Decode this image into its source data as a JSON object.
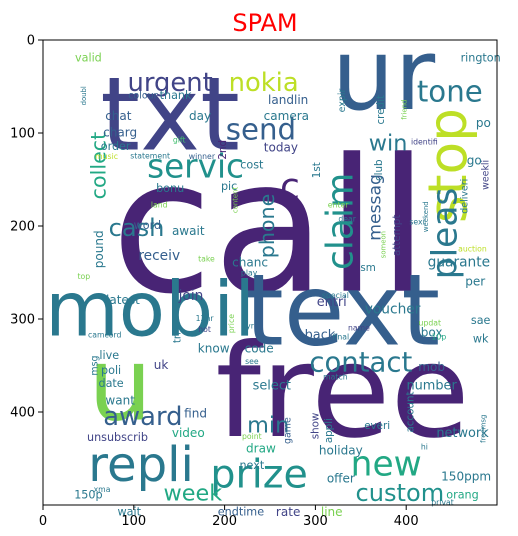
{
  "chart_data": {
    "type": "wordcloud",
    "title": "SPAM",
    "title_color": "#ff0000",
    "background": "#ffffff",
    "xlim": [
      0,
      500
    ],
    "ylim": [
      500,
      0
    ],
    "x_ticks": [
      0,
      100,
      200,
      300,
      400
    ],
    "y_ticks": [
      0,
      100,
      200,
      300,
      400
    ],
    "palette": [
      "#440154",
      "#482475",
      "#414487",
      "#355f8d",
      "#2a788e",
      "#21918c",
      "#22a884",
      "#44bf70",
      "#7ad151",
      "#bddf26",
      "#fde725"
    ],
    "words": [
      {
        "text": "call",
        "x": 250,
        "y": 215,
        "size": 215,
        "color": "#482475"
      },
      {
        "text": "free",
        "x": 330,
        "y": 388,
        "size": 150,
        "color": "#482475"
      },
      {
        "text": "txt",
        "x": 140,
        "y": 88,
        "size": 118,
        "color": "#414487"
      },
      {
        "text": "ur",
        "x": 375,
        "y": 45,
        "size": 115,
        "color": "#355f8d"
      },
      {
        "text": "text",
        "x": 330,
        "y": 298,
        "size": 115,
        "color": "#355f8d"
      },
      {
        "text": "mobil",
        "x": 118,
        "y": 295,
        "size": 88,
        "color": "#2a788e"
      },
      {
        "text": "u",
        "x": 85,
        "y": 378,
        "size": 118,
        "color": "#7ad151"
      },
      {
        "text": "stop",
        "x": 450,
        "y": 135,
        "size": 62,
        "color": "#bddf26",
        "rotate": -90
      },
      {
        "text": "repli",
        "x": 108,
        "y": 460,
        "size": 56,
        "color": "#2a788e"
      },
      {
        "text": "prize",
        "x": 238,
        "y": 470,
        "size": 46,
        "color": "#21918c"
      },
      {
        "text": "claim",
        "x": 330,
        "y": 195,
        "size": 42,
        "color": "#21918c",
        "rotate": -90
      },
      {
        "text": "pleas",
        "x": 445,
        "y": 208,
        "size": 40,
        "color": "#2a788e",
        "rotate": -90
      },
      {
        "text": "new",
        "x": 378,
        "y": 458,
        "size": 40,
        "color": "#22a884"
      },
      {
        "text": "servic",
        "x": 168,
        "y": 138,
        "size": 38,
        "color": "#21918c"
      },
      {
        "text": "send",
        "x": 240,
        "y": 98,
        "size": 34,
        "color": "#355f8d"
      },
      {
        "text": "tone",
        "x": 448,
        "y": 57,
        "size": 34,
        "color": "#2a788e"
      },
      {
        "text": "contact",
        "x": 350,
        "y": 348,
        "size": 32,
        "color": "#2a788e"
      },
      {
        "text": "c",
        "x": 272,
        "y": 160,
        "size": 42,
        "color": "#482475"
      },
      {
        "text": "award",
        "x": 110,
        "y": 406,
        "size": 30,
        "color": "#355f8d"
      },
      {
        "text": "urgent",
        "x": 140,
        "y": 47,
        "size": 30,
        "color": "#414487"
      },
      {
        "text": "nokia",
        "x": 243,
        "y": 47,
        "size": 30,
        "color": "#bddf26"
      },
      {
        "text": "custom",
        "x": 393,
        "y": 488,
        "size": 28,
        "color": "#21918c"
      },
      {
        "text": "cash",
        "x": 103,
        "y": 203,
        "size": 28,
        "color": "#2a788e"
      },
      {
        "text": "week",
        "x": 165,
        "y": 488,
        "size": 26,
        "color": "#22a884"
      },
      {
        "text": "min",
        "x": 248,
        "y": 415,
        "size": 26,
        "color": "#2a788e"
      },
      {
        "text": "win",
        "x": 380,
        "y": 112,
        "size": 26,
        "color": "#2a788e"
      },
      {
        "text": "collect",
        "x": 62,
        "y": 135,
        "size": 24,
        "color": "#22a884",
        "rotate": -90
      },
      {
        "text": "phone",
        "x": 248,
        "y": 200,
        "size": 24,
        "color": "#2a788e",
        "rotate": -90
      },
      {
        "text": "messag",
        "x": 366,
        "y": 180,
        "size": 20,
        "color": "#355f8d",
        "rotate": -90
      },
      {
        "text": "guarante",
        "x": 458,
        "y": 239,
        "size": 16,
        "color": "#2a788e"
      },
      {
        "text": "receiv",
        "x": 128,
        "y": 232,
        "size": 16,
        "color": "#355f8d"
      },
      {
        "text": "pound",
        "x": 62,
        "y": 225,
        "size": 14,
        "color": "#2a788e",
        "rotate": -90
      },
      {
        "text": "voucher",
        "x": 385,
        "y": 290,
        "size": 16,
        "color": "#2a788e"
      },
      {
        "text": "join",
        "x": 163,
        "y": 275,
        "size": 16,
        "color": "#414487"
      },
      {
        "text": "back",
        "x": 305,
        "y": 318,
        "size": 15,
        "color": "#355f8d"
      },
      {
        "text": "entri",
        "x": 318,
        "y": 282,
        "size": 15,
        "color": "#414487"
      },
      {
        "text": "select",
        "x": 252,
        "y": 372,
        "size": 15,
        "color": "#2a788e"
      },
      {
        "text": "number",
        "x": 428,
        "y": 372,
        "size": 15,
        "color": "#2a788e"
      },
      {
        "text": "network",
        "x": 462,
        "y": 423,
        "size": 15,
        "color": "#2a788e"
      },
      {
        "text": "holiday",
        "x": 328,
        "y": 442,
        "size": 14,
        "color": "#2a788e"
      },
      {
        "text": "offer",
        "x": 328,
        "y": 472,
        "size": 14,
        "color": "#2a788e"
      },
      {
        "text": "150ppm",
        "x": 466,
        "y": 470,
        "size": 14,
        "color": "#2a788e"
      },
      {
        "text": "orang",
        "x": 462,
        "y": 490,
        "size": 13,
        "color": "#22a884"
      },
      {
        "text": "endtime",
        "x": 218,
        "y": 508,
        "size": 13,
        "color": "#355f8d"
      },
      {
        "text": "rate",
        "x": 270,
        "y": 508,
        "size": 14,
        "color": "#414487"
      },
      {
        "text": "line",
        "x": 318,
        "y": 508,
        "size": 14,
        "color": "#7ad151"
      },
      {
        "text": "wait",
        "x": 95,
        "y": 508,
        "size": 13,
        "color": "#2a788e"
      },
      {
        "text": "150p",
        "x": 50,
        "y": 490,
        "size": 13,
        "color": "#2a788e"
      },
      {
        "text": "unsubscrib",
        "x": 82,
        "y": 428,
        "size": 13,
        "color": "#414487"
      },
      {
        "text": "video",
        "x": 160,
        "y": 423,
        "size": 14,
        "color": "#22a884"
      },
      {
        "text": "find",
        "x": 168,
        "y": 402,
        "size": 14,
        "color": "#355f8d"
      },
      {
        "text": "draw",
        "x": 240,
        "y": 440,
        "size": 14,
        "color": "#22a884"
      },
      {
        "text": "next",
        "x": 230,
        "y": 458,
        "size": 13,
        "color": "#2a788e"
      },
      {
        "text": "want",
        "x": 85,
        "y": 388,
        "size": 14,
        "color": "#2a788e"
      },
      {
        "text": "date",
        "x": 75,
        "y": 370,
        "size": 13,
        "color": "#2a788e"
      },
      {
        "text": "poli",
        "x": 75,
        "y": 356,
        "size": 13,
        "color": "#2a788e"
      },
      {
        "text": "live",
        "x": 73,
        "y": 340,
        "size": 13,
        "color": "#2a788e"
      },
      {
        "text": "uk",
        "x": 130,
        "y": 350,
        "size": 14,
        "color": "#414487"
      },
      {
        "text": "latest",
        "x": 88,
        "y": 280,
        "size": 14,
        "color": "#2a788e"
      },
      {
        "text": "know",
        "x": 188,
        "y": 332,
        "size": 14,
        "color": "#2a788e"
      },
      {
        "text": "code",
        "x": 238,
        "y": 332,
        "size": 14,
        "color": "#2a788e"
      },
      {
        "text": "mob",
        "x": 428,
        "y": 352,
        "size": 14,
        "color": "#355f8d"
      },
      {
        "text": "box",
        "x": 428,
        "y": 315,
        "size": 14,
        "color": "#2a788e"
      },
      {
        "text": "per",
        "x": 476,
        "y": 260,
        "size": 14,
        "color": "#2a788e"
      },
      {
        "text": "sae",
        "x": 482,
        "y": 302,
        "size": 13,
        "color": "#2a788e"
      },
      {
        "text": "wk",
        "x": 482,
        "y": 322,
        "size": 13,
        "color": "#2a788e"
      },
      {
        "text": "chanc",
        "x": 228,
        "y": 240,
        "size": 14,
        "color": "#2a788e"
      },
      {
        "text": "await",
        "x": 160,
        "y": 206,
        "size": 14,
        "color": "#2a788e"
      },
      {
        "text": "word",
        "x": 115,
        "y": 200,
        "size": 13,
        "color": "#355f8d"
      },
      {
        "text": "bonu",
        "x": 140,
        "y": 160,
        "size": 13,
        "color": "#2a788e"
      },
      {
        "text": "pic",
        "x": 205,
        "y": 158,
        "size": 13,
        "color": "#2a788e"
      },
      {
        "text": "cost",
        "x": 230,
        "y": 135,
        "size": 13,
        "color": "#2a788e"
      },
      {
        "text": "today",
        "x": 262,
        "y": 116,
        "size": 14,
        "color": "#414487"
      },
      {
        "text": "day",
        "x": 173,
        "y": 82,
        "size": 14,
        "color": "#2a788e"
      },
      {
        "text": "chat",
        "x": 83,
        "y": 82,
        "size": 14,
        "color": "#355f8d"
      },
      {
        "text": "charg",
        "x": 85,
        "y": 100,
        "size": 14,
        "color": "#355f8d"
      },
      {
        "text": "order",
        "x": 80,
        "y": 115,
        "size": 13,
        "color": "#2a788e"
      },
      {
        "text": "landlin",
        "x": 270,
        "y": 65,
        "size": 14,
        "color": "#355f8d"
      },
      {
        "text": "camera",
        "x": 268,
        "y": 82,
        "size": 14,
        "color": "#2a788e"
      },
      {
        "text": "valid",
        "x": 50,
        "y": 20,
        "size": 13,
        "color": "#7ad151"
      },
      {
        "text": "thank",
        "x": 146,
        "y": 60,
        "size": 13,
        "color": "#2a788e"
      },
      {
        "text": "colour",
        "x": 110,
        "y": 60,
        "size": 11,
        "color": "#355f8d"
      },
      {
        "text": "rington",
        "x": 482,
        "y": 20,
        "size": 13,
        "color": "#2a788e"
      },
      {
        "text": "po",
        "x": 485,
        "y": 90,
        "size": 14,
        "color": "#2a788e"
      },
      {
        "text": "go",
        "x": 475,
        "y": 130,
        "size": 14,
        "color": "#2a788e"
      },
      {
        "text": "weekli",
        "x": 488,
        "y": 145,
        "size": 11,
        "color": "#414487",
        "rotate": -90
      },
      {
        "text": "deliveri",
        "x": 465,
        "y": 168,
        "size": 11,
        "color": "#2a788e",
        "rotate": -90
      },
      {
        "text": "credit",
        "x": 372,
        "y": 75,
        "size": 12,
        "color": "#2a788e",
        "rotate": -90
      },
      {
        "text": "club",
        "x": 370,
        "y": 140,
        "size": 12,
        "color": "#2a788e",
        "rotate": -90
      },
      {
        "text": "expir",
        "x": 330,
        "y": 65,
        "size": 11,
        "color": "#2a788e",
        "rotate": -90
      },
      {
        "text": "1st",
        "x": 302,
        "y": 140,
        "size": 12,
        "color": "#2a788e",
        "rotate": -90
      },
      {
        "text": "2nd",
        "x": 198,
        "y": 118,
        "size": 12,
        "color": "#482475",
        "rotate": -90
      },
      {
        "text": "attempt",
        "x": 390,
        "y": 210,
        "size": 12,
        "color": "#414487",
        "rotate": -90
      },
      {
        "text": "sm",
        "x": 358,
        "y": 245,
        "size": 12,
        "color": "#2a788e"
      },
      {
        "text": "show",
        "x": 300,
        "y": 415,
        "size": 12,
        "color": "#414487",
        "rotate": -90
      },
      {
        "text": "appli",
        "x": 315,
        "y": 420,
        "size": 12,
        "color": "#2a788e",
        "rotate": -90
      },
      {
        "text": "everi",
        "x": 368,
        "y": 415,
        "size": 12,
        "color": "#2a788e"
      },
      {
        "text": "account",
        "x": 405,
        "y": 400,
        "size": 12,
        "color": "#2a788e",
        "rotate": -90
      },
      {
        "text": "game",
        "x": 270,
        "y": 420,
        "size": 11,
        "color": "#355f8d",
        "rotate": -90
      },
      {
        "text": "msg",
        "x": 57,
        "y": 350,
        "size": 11,
        "color": "#2a788e",
        "rotate": -90
      },
      {
        "text": "tri",
        "x": 148,
        "y": 320,
        "size": 12,
        "color": "#2a788e",
        "rotate": -90
      },
      {
        "text": "gift",
        "x": 150,
        "y": 108,
        "size": 9,
        "color": "#44bf70"
      },
      {
        "text": "music",
        "x": 70,
        "y": 126,
        "size": 9,
        "color": "#bddf26"
      },
      {
        "text": "statement",
        "x": 118,
        "y": 125,
        "size": 9,
        "color": "#2a788e"
      },
      {
        "text": "winner",
        "x": 175,
        "y": 126,
        "size": 9,
        "color": "#355f8d"
      },
      {
        "text": "content",
        "x": 212,
        "y": 172,
        "size": 8,
        "color": "#7ad151",
        "rotate": -90
      },
      {
        "text": "land",
        "x": 128,
        "y": 178,
        "size": 9,
        "color": "#7ad151"
      },
      {
        "text": "top",
        "x": 45,
        "y": 255,
        "size": 9,
        "color": "#7ad151"
      },
      {
        "text": "take",
        "x": 180,
        "y": 236,
        "size": 9,
        "color": "#7ad151"
      },
      {
        "text": "camcord",
        "x": 68,
        "y": 318,
        "size": 9,
        "color": "#2a788e"
      },
      {
        "text": "12hr",
        "x": 178,
        "y": 300,
        "size": 9,
        "color": "#2a788e"
      },
      {
        "text": "hot",
        "x": 178,
        "y": 312,
        "size": 9,
        "color": "#414487"
      },
      {
        "text": "price",
        "x": 208,
        "y": 305,
        "size": 9,
        "color": "#7ad151",
        "rotate": -90
      },
      {
        "text": "yr",
        "x": 228,
        "y": 308,
        "size": 9,
        "color": "#2a788e"
      },
      {
        "text": "see",
        "x": 230,
        "y": 346,
        "size": 9,
        "color": "#2a788e"
      },
      {
        "text": "point",
        "x": 230,
        "y": 427,
        "size": 9,
        "color": "#7ad151"
      },
      {
        "text": "xma",
        "x": 65,
        "y": 484,
        "size": 9,
        "color": "#2a788e"
      },
      {
        "text": "doubl",
        "x": 45,
        "y": 60,
        "size": 8,
        "color": "#2a788e",
        "rotate": -90
      },
      {
        "text": "enter",
        "x": 325,
        "y": 178,
        "size": 9,
        "color": "#7ad151"
      },
      {
        "text": "dear",
        "x": 335,
        "y": 193,
        "size": 9,
        "color": "#2a788e"
      },
      {
        "text": "someon",
        "x": 375,
        "y": 220,
        "size": 8,
        "color": "#7ad151",
        "rotate": -90
      },
      {
        "text": "sexi",
        "x": 412,
        "y": 196,
        "size": 9,
        "color": "#2a788e"
      },
      {
        "text": "weekend",
        "x": 422,
        "y": 190,
        "size": 8,
        "color": "#2a788e",
        "rotate": -90
      },
      {
        "text": "identifi",
        "x": 420,
        "y": 110,
        "size": 9,
        "color": "#414487"
      },
      {
        "text": "friend",
        "x": 398,
        "y": 75,
        "size": 8,
        "color": "#7ad151",
        "rotate": -90
      },
      {
        "text": "play",
        "x": 227,
        "y": 251,
        "size": 9,
        "color": "#2a788e"
      },
      {
        "text": "special",
        "x": 322,
        "y": 275,
        "size": 9,
        "color": "#2a788e"
      },
      {
        "text": "auction",
        "x": 473,
        "y": 225,
        "size": 9,
        "color": "#bddf26"
      },
      {
        "text": "updat",
        "x": 426,
        "y": 305,
        "size": 9,
        "color": "#7ad151"
      },
      {
        "text": "name",
        "x": 348,
        "y": 310,
        "size": 9,
        "color": "#414487"
      },
      {
        "text": "final",
        "x": 328,
        "y": 320,
        "size": 9,
        "color": "#2a788e"
      },
      {
        "text": "10p",
        "x": 436,
        "y": 320,
        "size": 9,
        "color": "#22a884"
      },
      {
        "text": "match",
        "x": 322,
        "y": 363,
        "size": 9,
        "color": "#2a788e"
      },
      {
        "text": "freemsg",
        "x": 485,
        "y": 418,
        "size": 8,
        "color": "#2a788e",
        "rotate": -90
      },
      {
        "text": "hi",
        "x": 420,
        "y": 438,
        "size": 9,
        "color": "#2a788e"
      },
      {
        "text": "privat",
        "x": 440,
        "y": 498,
        "size": 9,
        "color": "#2a788e"
      }
    ]
  }
}
